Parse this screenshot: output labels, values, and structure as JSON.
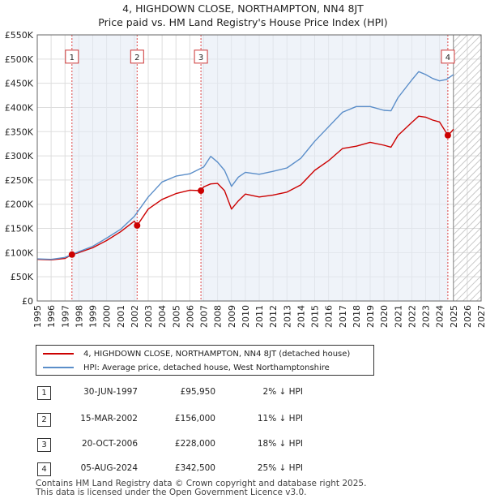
{
  "chart_data": {
    "type": "line",
    "title": "4, HIGHDOWN CLOSE, NORTHAMPTON, NN4 8JT",
    "subtitle": "Price paid vs. HM Land Registry's House Price Index (HPI)",
    "xlim": [
      1995,
      2027
    ],
    "ylim": [
      0,
      550000
    ],
    "x_ticks": [
      1995,
      1996,
      1997,
      1998,
      1999,
      2000,
      2001,
      2002,
      2003,
      2004,
      2005,
      2006,
      2007,
      2008,
      2009,
      2010,
      2011,
      2012,
      2013,
      2014,
      2015,
      2016,
      2017,
      2018,
      2019,
      2020,
      2021,
      2022,
      2023,
      2024,
      2025,
      2026,
      2027
    ],
    "y_ticks": [
      0,
      50000,
      100000,
      150000,
      200000,
      250000,
      300000,
      350000,
      400000,
      450000,
      500000,
      550000
    ],
    "y_tick_labels": [
      "£0",
      "£50K",
      "£100K",
      "£150K",
      "£200K",
      "£250K",
      "£300K",
      "£350K",
      "£400K",
      "£450K",
      "£500K",
      "£550K"
    ],
    "grid": true,
    "forecast_hatch_start": 2025.0,
    "series": [
      {
        "name": "4, HIGHDOWN CLOSE, NORTHAMPTON, NN4 8JT (detached house)",
        "color": "#cc0000",
        "x": [
          1995.0,
          1996.0,
          1997.0,
          1997.5,
          1998.0,
          1999.0,
          2000.0,
          2001.0,
          2002.0,
          2002.2,
          2003.0,
          2004.0,
          2005.0,
          2006.0,
          2006.8,
          2007.0,
          2007.5,
          2008.0,
          2008.5,
          2009.0,
          2009.5,
          2010.0,
          2011.0,
          2012.0,
          2013.0,
          2014.0,
          2015.0,
          2016.0,
          2017.0,
          2018.0,
          2019.0,
          2020.0,
          2020.5,
          2021.0,
          2022.0,
          2022.5,
          2023.0,
          2023.5,
          2024.0,
          2024.6,
          2024.8,
          2025.0
        ],
        "values": [
          86000,
          85000,
          88000,
          95950,
          100000,
          110000,
          125000,
          143000,
          165000,
          156000,
          190000,
          210000,
          222000,
          229000,
          228000,
          236000,
          242000,
          243000,
          228000,
          190000,
          207000,
          221000,
          215000,
          219000,
          225000,
          240000,
          270000,
          290000,
          315000,
          320000,
          328000,
          322000,
          318000,
          342000,
          369000,
          382000,
          380000,
          374000,
          370000,
          342500,
          348000,
          355000
        ]
      },
      {
        "name": "HPI: Average price, detached house, West Northamptonshire",
        "color": "#5b8ec9",
        "x": [
          1995.0,
          1996.0,
          1997.0,
          1998.0,
          1999.0,
          2000.0,
          2001.0,
          2002.0,
          2003.0,
          2004.0,
          2005.0,
          2006.0,
          2007.0,
          2007.5,
          2008.0,
          2008.5,
          2009.0,
          2009.5,
          2010.0,
          2011.0,
          2012.0,
          2013.0,
          2014.0,
          2015.0,
          2016.0,
          2017.0,
          2018.0,
          2019.0,
          2020.0,
          2020.5,
          2021.0,
          2022.0,
          2022.5,
          2023.0,
          2023.5,
          2024.0,
          2024.5,
          2025.0
        ],
        "values": [
          87000,
          86000,
          90000,
          102000,
          113000,
          130000,
          148000,
          175000,
          215000,
          246000,
          258000,
          263000,
          277000,
          299000,
          287000,
          270000,
          237000,
          256000,
          266000,
          262000,
          268000,
          275000,
          295000,
          330000,
          360000,
          390000,
          402000,
          402000,
          394000,
          393000,
          420000,
          457000,
          474000,
          468000,
          460000,
          455000,
          458000,
          468000
        ]
      }
    ],
    "sales": [
      {
        "label": "1",
        "x": 1997.5,
        "value": 95950
      },
      {
        "label": "2",
        "x": 2002.2,
        "value": 156000
      },
      {
        "label": "3",
        "x": 2006.8,
        "value": 228000
      },
      {
        "label": "4",
        "x": 2024.6,
        "value": 342500
      }
    ],
    "marker_box_value": 505000
  },
  "legend": {
    "property": "4, HIGHDOWN CLOSE, NORTHAMPTON, NN4 8JT (detached house)",
    "hpi": "HPI: Average price, detached house, West Northamptonshire",
    "property_color": "#cc0000",
    "hpi_color": "#5b8ec9"
  },
  "transactions": [
    {
      "num": "1",
      "date": "30-JUN-1997",
      "price": "£95,950",
      "hpi": "2% ↓ HPI"
    },
    {
      "num": "2",
      "date": "15-MAR-2002",
      "price": "£156,000",
      "hpi": "11% ↓ HPI"
    },
    {
      "num": "3",
      "date": "20-OCT-2006",
      "price": "£228,000",
      "hpi": "18% ↓ HPI"
    },
    {
      "num": "4",
      "date": "05-AUG-2024",
      "price": "£342,500",
      "hpi": "25% ↓ HPI"
    }
  ],
  "footer": {
    "line1": "Contains HM Land Registry data © Crown copyright and database right 2025.",
    "line2": "This data is licensed under the Open Government Licence v3.0."
  }
}
